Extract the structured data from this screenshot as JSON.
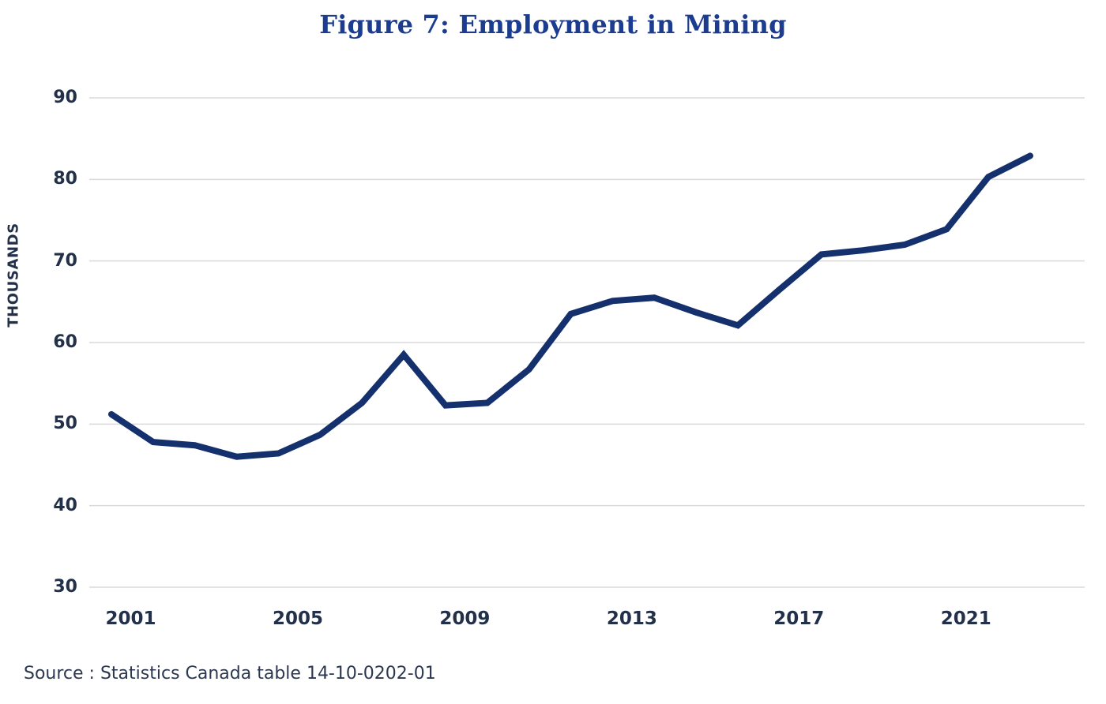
{
  "header": {
    "title": "Figure 7: Employment in Mining"
  },
  "source_note": "Source : Statistics Canada table 14-10-0202-01",
  "colors": {
    "line": "#14306d",
    "title": "#1c3c90",
    "axis_text": "#233049",
    "gridline": "#dadada"
  },
  "chart_data": {
    "type": "line",
    "title": "Figure 7: Employment in Mining",
    "xlabel": "",
    "ylabel": "THOUSANDS",
    "x": [
      2001,
      2002,
      2003,
      2004,
      2005,
      2006,
      2007,
      2008,
      2009,
      2010,
      2011,
      2012,
      2013,
      2014,
      2015,
      2016,
      2017,
      2018,
      2019,
      2020,
      2021,
      2022,
      2023
    ],
    "series": [
      {
        "name": "Employment in Mining",
        "values": [
          51.2,
          47.8,
          47.4,
          46.0,
          46.4,
          48.7,
          52.6,
          58.5,
          52.3,
          52.6,
          56.7,
          63.5,
          65.1,
          65.5,
          63.7,
          62.1,
          66.5,
          70.8,
          71.3,
          72.0,
          73.9,
          80.3,
          82.9
        ]
      }
    ],
    "ylim": [
      30,
      90
    ],
    "y_ticks": [
      30,
      40,
      50,
      60,
      70,
      80,
      90
    ],
    "x_ticks": [
      2001,
      2005,
      2009,
      2013,
      2017,
      2021
    ],
    "grid": "horizontal-only",
    "legend": "none"
  }
}
